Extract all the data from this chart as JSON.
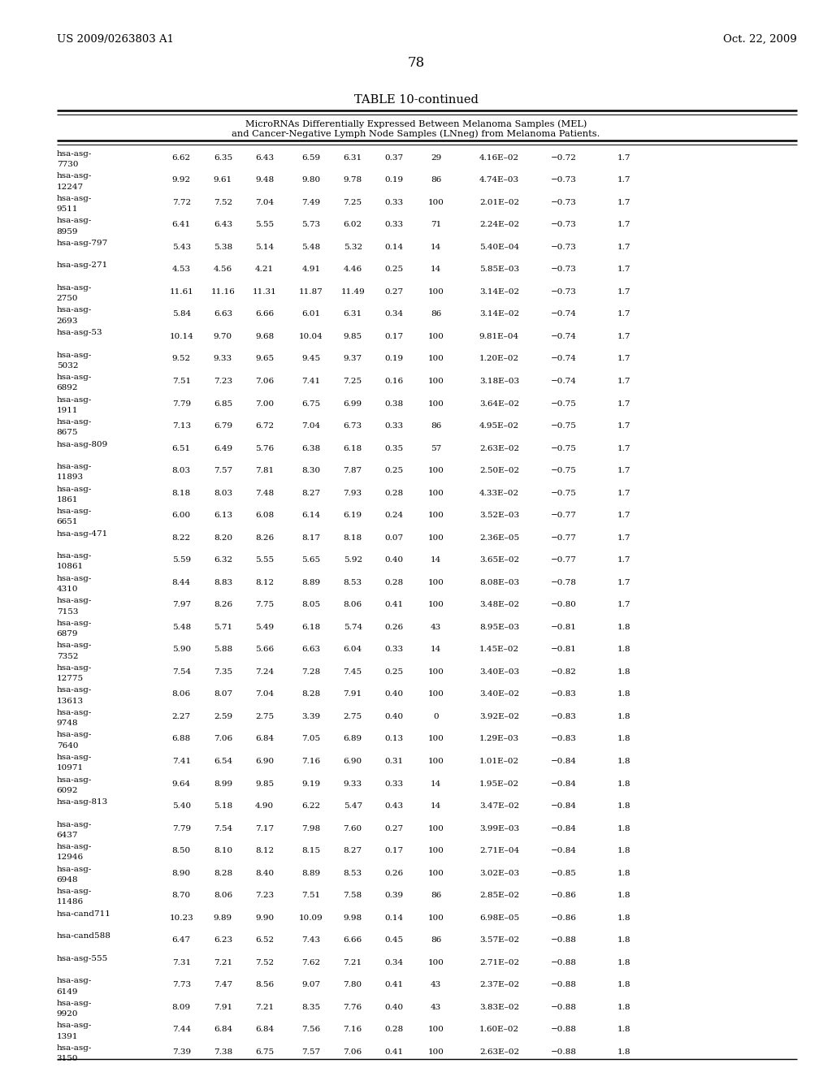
{
  "header_left": "US 2009/0263803 A1",
  "header_right": "Oct. 22, 2009",
  "page_number": "78",
  "table_title": "TABLE 10-continued",
  "table_subtitle_line1": "MicroRNAs Differentially Expressed Between Melanoma Samples (MEL)",
  "table_subtitle_line2": "and Cancer-Negative Lymph Node Samples (LNneg) from Melanoma Patients.",
  "rows": [
    [
      "hsa-asg-",
      "7730",
      "6.62",
      "6.35",
      "6.43",
      "6.59",
      "6.31",
      "0.37",
      "29",
      "4.16E–02",
      "−0.72",
      "1.7"
    ],
    [
      "hsa-asg-",
      "12247",
      "9.92",
      "9.61",
      "9.48",
      "9.80",
      "9.78",
      "0.19",
      "86",
      "4.74E–03",
      "−0.73",
      "1.7"
    ],
    [
      "hsa-asg-",
      "9511",
      "7.72",
      "7.52",
      "7.04",
      "7.49",
      "7.25",
      "0.33",
      "100",
      "2.01E–02",
      "−0.73",
      "1.7"
    ],
    [
      "hsa-asg-",
      "8959",
      "6.41",
      "6.43",
      "5.55",
      "5.73",
      "6.02",
      "0.33",
      "71",
      "2.24E–02",
      "−0.73",
      "1.7"
    ],
    [
      "hsa-asg-797",
      "",
      "5.43",
      "5.38",
      "5.14",
      "5.48",
      "5.32",
      "0.14",
      "14",
      "5.40E–04",
      "−0.73",
      "1.7"
    ],
    [
      "hsa-asg-271",
      "",
      "4.53",
      "4.56",
      "4.21",
      "4.91",
      "4.46",
      "0.25",
      "14",
      "5.85E–03",
      "−0.73",
      "1.7"
    ],
    [
      "hsa-asg-",
      "2750",
      "11.61",
      "11.16",
      "11.31",
      "11.87",
      "11.49",
      "0.27",
      "100",
      "3.14E–02",
      "−0.73",
      "1.7"
    ],
    [
      "hsa-asg-",
      "2693",
      "5.84",
      "6.63",
      "6.66",
      "6.01",
      "6.31",
      "0.34",
      "86",
      "3.14E–02",
      "−0.74",
      "1.7"
    ],
    [
      "hsa-asg-53",
      "",
      "10.14",
      "9.70",
      "9.68",
      "10.04",
      "9.85",
      "0.17",
      "100",
      "9.81E–04",
      "−0.74",
      "1.7"
    ],
    [
      "hsa-asg-",
      "5032",
      "9.52",
      "9.33",
      "9.65",
      "9.45",
      "9.37",
      "0.19",
      "100",
      "1.20E–02",
      "−0.74",
      "1.7"
    ],
    [
      "hsa-asg-",
      "6892",
      "7.51",
      "7.23",
      "7.06",
      "7.41",
      "7.25",
      "0.16",
      "100",
      "3.18E–03",
      "−0.74",
      "1.7"
    ],
    [
      "hsa-asg-",
      "1911",
      "7.79",
      "6.85",
      "7.00",
      "6.75",
      "6.99",
      "0.38",
      "100",
      "3.64E–02",
      "−0.75",
      "1.7"
    ],
    [
      "hsa-asg-",
      "8675",
      "7.13",
      "6.79",
      "6.72",
      "7.04",
      "6.73",
      "0.33",
      "86",
      "4.95E–02",
      "−0.75",
      "1.7"
    ],
    [
      "hsa-asg-809",
      "",
      "6.51",
      "6.49",
      "5.76",
      "6.38",
      "6.18",
      "0.35",
      "57",
      "2.63E–02",
      "−0.75",
      "1.7"
    ],
    [
      "hsa-asg-",
      "11893",
      "8.03",
      "7.57",
      "7.81",
      "8.30",
      "7.87",
      "0.25",
      "100",
      "2.50E–02",
      "−0.75",
      "1.7"
    ],
    [
      "hsa-asg-",
      "1861",
      "8.18",
      "8.03",
      "7.48",
      "8.27",
      "7.93",
      "0.28",
      "100",
      "4.33E–02",
      "−0.75",
      "1.7"
    ],
    [
      "hsa-asg-",
      "6651",
      "6.00",
      "6.13",
      "6.08",
      "6.14",
      "6.19",
      "0.24",
      "100",
      "3.52E–03",
      "−0.77",
      "1.7"
    ],
    [
      "hsa-asg-471",
      "",
      "8.22",
      "8.20",
      "8.26",
      "8.17",
      "8.18",
      "0.07",
      "100",
      "2.36E–05",
      "−0.77",
      "1.7"
    ],
    [
      "hsa-asg-",
      "10861",
      "5.59",
      "6.32",
      "5.55",
      "5.65",
      "5.92",
      "0.40",
      "14",
      "3.65E–02",
      "−0.77",
      "1.7"
    ],
    [
      "hsa-asg-",
      "4310",
      "8.44",
      "8.83",
      "8.12",
      "8.89",
      "8.53",
      "0.28",
      "100",
      "8.08E–03",
      "−0.78",
      "1.7"
    ],
    [
      "hsa-asg-",
      "7153",
      "7.97",
      "8.26",
      "7.75",
      "8.05",
      "8.06",
      "0.41",
      "100",
      "3.48E–02",
      "−0.80",
      "1.7"
    ],
    [
      "hsa-asg-",
      "6879",
      "5.48",
      "5.71",
      "5.49",
      "6.18",
      "5.74",
      "0.26",
      "43",
      "8.95E–03",
      "−0.81",
      "1.8"
    ],
    [
      "hsa-asg-",
      "7352",
      "5.90",
      "5.88",
      "5.66",
      "6.63",
      "6.04",
      "0.33",
      "14",
      "1.45E–02",
      "−0.81",
      "1.8"
    ],
    [
      "hsa-asg-",
      "12775",
      "7.54",
      "7.35",
      "7.24",
      "7.28",
      "7.45",
      "0.25",
      "100",
      "3.40E–03",
      "−0.82",
      "1.8"
    ],
    [
      "hsa-asg-",
      "13613",
      "8.06",
      "8.07",
      "7.04",
      "8.28",
      "7.91",
      "0.40",
      "100",
      "3.40E–02",
      "−0.83",
      "1.8"
    ],
    [
      "hsa-asg-",
      "9748",
      "2.27",
      "2.59",
      "2.75",
      "3.39",
      "2.75",
      "0.40",
      "0",
      "3.92E–02",
      "−0.83",
      "1.8"
    ],
    [
      "hsa-asg-",
      "7640",
      "6.88",
      "7.06",
      "6.84",
      "7.05",
      "6.89",
      "0.13",
      "100",
      "1.29E–03",
      "−0.83",
      "1.8"
    ],
    [
      "hsa-asg-",
      "10971",
      "7.41",
      "6.54",
      "6.90",
      "7.16",
      "6.90",
      "0.31",
      "100",
      "1.01E–02",
      "−0.84",
      "1.8"
    ],
    [
      "hsa-asg-",
      "6092",
      "9.64",
      "8.99",
      "9.85",
      "9.19",
      "9.33",
      "0.33",
      "14",
      "1.95E–02",
      "−0.84",
      "1.8"
    ],
    [
      "hsa-asg-813",
      "",
      "5.40",
      "5.18",
      "4.90",
      "6.22",
      "5.47",
      "0.43",
      "14",
      "3.47E–02",
      "−0.84",
      "1.8"
    ],
    [
      "hsa-asg-",
      "6437",
      "7.79",
      "7.54",
      "7.17",
      "7.98",
      "7.60",
      "0.27",
      "100",
      "3.99E–03",
      "−0.84",
      "1.8"
    ],
    [
      "hsa-asg-",
      "12946",
      "8.50",
      "8.10",
      "8.12",
      "8.15",
      "8.27",
      "0.17",
      "100",
      "2.71E–04",
      "−0.84",
      "1.8"
    ],
    [
      "hsa-asg-",
      "6948",
      "8.90",
      "8.28",
      "8.40",
      "8.89",
      "8.53",
      "0.26",
      "100",
      "3.02E–03",
      "−0.85",
      "1.8"
    ],
    [
      "hsa-asg-",
      "11486",
      "8.70",
      "8.06",
      "7.23",
      "7.51",
      "7.58",
      "0.39",
      "86",
      "2.85E–02",
      "−0.86",
      "1.8"
    ],
    [
      "hsa-cand711",
      "",
      "10.23",
      "9.89",
      "9.90",
      "10.09",
      "9.98",
      "0.14",
      "100",
      "6.98E–05",
      "−0.86",
      "1.8"
    ],
    [
      "hsa-cand588",
      "",
      "6.47",
      "6.23",
      "6.52",
      "7.43",
      "6.66",
      "0.45",
      "86",
      "3.57E–02",
      "−0.88",
      "1.8"
    ],
    [
      "hsa-asg-555",
      "",
      "7.31",
      "7.21",
      "7.52",
      "7.62",
      "7.21",
      "0.34",
      "100",
      "2.71E–02",
      "−0.88",
      "1.8"
    ],
    [
      "hsa-asg-",
      "6149",
      "7.73",
      "7.47",
      "8.56",
      "9.07",
      "7.80",
      "0.41",
      "43",
      "2.37E–02",
      "−0.88",
      "1.8"
    ],
    [
      "hsa-asg-",
      "9920",
      "8.09",
      "7.91",
      "7.21",
      "8.35",
      "7.76",
      "0.40",
      "43",
      "3.83E–02",
      "−0.88",
      "1.8"
    ],
    [
      "hsa-asg-",
      "1391",
      "7.44",
      "6.84",
      "6.84",
      "7.56",
      "7.16",
      "0.28",
      "100",
      "1.60E–02",
      "−0.88",
      "1.8"
    ],
    [
      "hsa-asg-",
      "3150",
      "7.39",
      "7.38",
      "6.75",
      "7.57",
      "7.06",
      "0.41",
      "100",
      "2.63E–02",
      "−0.88",
      "1.8"
    ]
  ]
}
